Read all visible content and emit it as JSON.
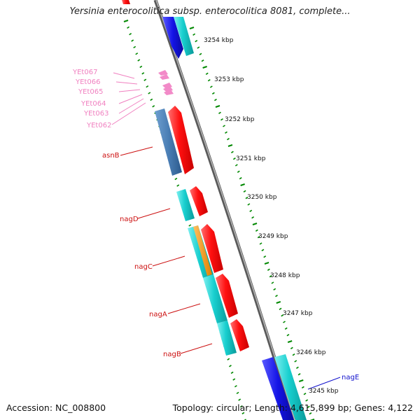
{
  "header": {
    "title": "Yersinia enterocolitica subsp. enterocolitica 8081, complete..."
  },
  "footer": {
    "accession": "Accession: NC_008800",
    "topology": "Topology: circular; Length: 4,615,899 bp; Genes: 4,122"
  },
  "colors": {
    "forward_cds": "#ff1a1a",
    "reverse_cds": "#1ad4d4",
    "rna_gene": "#4a7eb5",
    "blue_strand": "#1414e6",
    "misc_feature": "#f29400",
    "pink_labels": "#f080c0",
    "red_labels": "#cc1010",
    "blue_labels": "#1010cc",
    "tick_marks": "#008800",
    "backbone": "#888888"
  },
  "map": {
    "scale_ticks": [
      "3254 kbp",
      "3253 kbp",
      "3252 kbp",
      "3251 kbp",
      "3250 kbp",
      "3249 kbp",
      "3248 kbp",
      "3247 kbp",
      "3246 kbp",
      "3245 kbp"
    ],
    "pink_gene_labels": [
      "YEt067",
      "YEt066",
      "YEt065",
      "YEt064",
      "YEt063",
      "YEt062"
    ],
    "red_gene_labels": [
      "asnB",
      "nagD",
      "nagC",
      "nagA",
      "nagB"
    ],
    "blue_gene_labels": [
      "nagE"
    ]
  }
}
